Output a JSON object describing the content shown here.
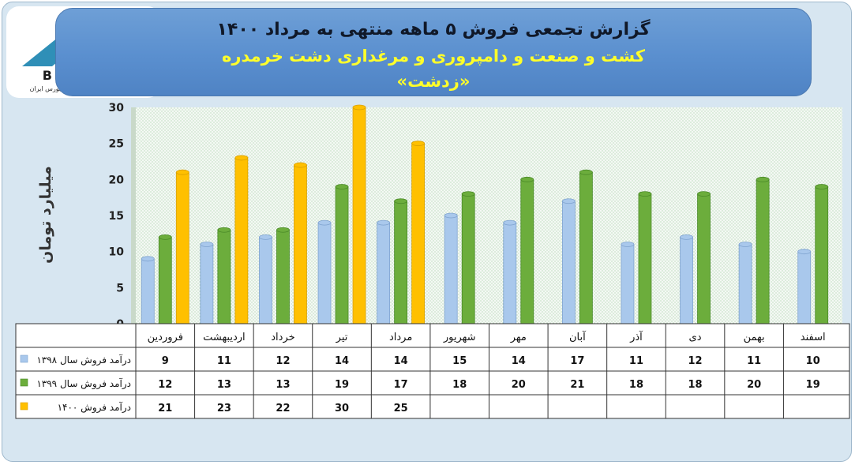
{
  "header": {
    "title_line1": "گزارش تجمعی فروش ۵ ماهه منتهی به مرداد ۱۴۰۰",
    "title_line2": "کشت و صنعت و دامپروری و مرغداری دشت خرمدره",
    "title_line3": "«زدشت»"
  },
  "logo": {
    "word": "BOURSE",
    "subtitle": "پایگاه اطلاع رسانی و تحلیلی بورس ایران"
  },
  "colors": {
    "series_1398": "#a9c8ec",
    "series_1399": "#6cad3c",
    "series_1400": "#ffc000",
    "header_title": "#101828",
    "header_subtitle": "#ffff2a"
  },
  "chart_data": {
    "type": "bar",
    "ylabel": "میلیارد تومان",
    "ylim": [
      0,
      30
    ],
    "yticks": [
      0,
      5,
      10,
      15,
      20,
      25,
      30
    ],
    "grid": false,
    "legend": "data-table-left",
    "categories": [
      "فروردین",
      "اردیبهشت",
      "خرداد",
      "تیر",
      "مرداد",
      "شهریور",
      "مهر",
      "آبان",
      "آذر",
      "دی",
      "بهمن",
      "اسفند"
    ],
    "series": [
      {
        "name": "درآمد فروش سال ۱۳۹۸",
        "values": [
          9,
          11,
          12,
          14,
          14,
          15,
          14,
          17,
          11,
          12,
          11,
          10
        ]
      },
      {
        "name": "درآمد فروش سال ۱۳۹۹",
        "values": [
          12,
          13,
          13,
          19,
          17,
          18,
          20,
          21,
          18,
          18,
          20,
          19
        ]
      },
      {
        "name": "درآمد فروش ۱۴۰۰",
        "values": [
          21,
          23,
          22,
          30,
          25,
          null,
          null,
          null,
          null,
          null,
          null,
          null
        ]
      }
    ]
  }
}
